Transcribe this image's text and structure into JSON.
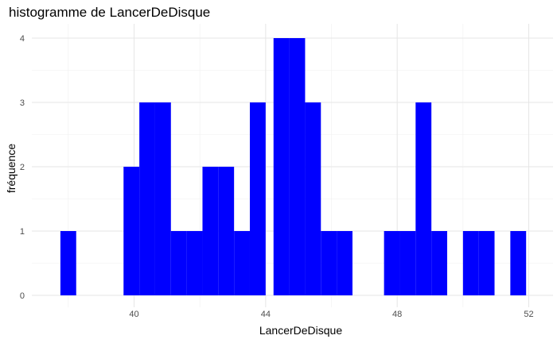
{
  "chart_data": {
    "type": "bar",
    "title": "histogramme de LancerDeDisque",
    "xlabel": "LancerDeDisque",
    "ylabel": "fréquence",
    "bar_color": "#0000ff",
    "grid": true,
    "xlim": [
      37.2,
      52.8
    ],
    "ylim": [
      0,
      4.25
    ],
    "x_ticks": [
      40,
      44,
      48,
      52
    ],
    "y_ticks": [
      0,
      1,
      2,
      3,
      4
    ],
    "bin_width": 0.48,
    "bins": [
      {
        "x0": 37.76,
        "x1": 38.24,
        "count": 1
      },
      {
        "x0": 39.68,
        "x1": 40.16,
        "count": 2
      },
      {
        "x0": 40.16,
        "x1": 40.64,
        "count": 3
      },
      {
        "x0": 40.64,
        "x1": 41.12,
        "count": 3
      },
      {
        "x0": 41.12,
        "x1": 41.6,
        "count": 1
      },
      {
        "x0": 41.6,
        "x1": 42.08,
        "count": 1
      },
      {
        "x0": 42.08,
        "x1": 42.56,
        "count": 2
      },
      {
        "x0": 42.56,
        "x1": 43.04,
        "count": 2
      },
      {
        "x0": 43.04,
        "x1": 43.52,
        "count": 1
      },
      {
        "x0": 43.52,
        "x1": 44.0,
        "count": 3
      },
      {
        "x0": 44.24,
        "x1": 44.72,
        "count": 4
      },
      {
        "x0": 44.72,
        "x1": 45.2,
        "count": 4
      },
      {
        "x0": 45.2,
        "x1": 45.68,
        "count": 3
      },
      {
        "x0": 45.68,
        "x1": 46.16,
        "count": 1
      },
      {
        "x0": 46.16,
        "x1": 46.64,
        "count": 1
      },
      {
        "x0": 47.6,
        "x1": 48.08,
        "count": 1
      },
      {
        "x0": 48.08,
        "x1": 48.56,
        "count": 1
      },
      {
        "x0": 48.56,
        "x1": 49.04,
        "count": 3
      },
      {
        "x0": 49.04,
        "x1": 49.52,
        "count": 1
      },
      {
        "x0": 50.0,
        "x1": 50.48,
        "count": 1
      },
      {
        "x0": 50.48,
        "x1": 50.96,
        "count": 1
      },
      {
        "x0": 51.44,
        "x1": 51.92,
        "count": 1
      }
    ]
  }
}
